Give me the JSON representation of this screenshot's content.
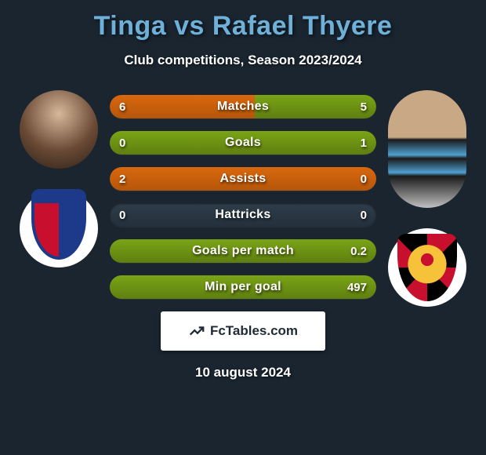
{
  "title": "Tinga vs Rafael Thyere",
  "subtitle": "Club competitions, Season 2023/2024",
  "date": "10 august 2024",
  "footer_brand": "FcTables.com",
  "colors": {
    "title": "#6fb0d8",
    "bar_bg": "#2a3744",
    "fill_left": "#d9680e",
    "fill_right": "#7aa416",
    "background": "#1a2530"
  },
  "bars": [
    {
      "label": "Matches",
      "left": "6",
      "right": "5",
      "left_pct": 54.5,
      "right_pct": 45.5
    },
    {
      "label": "Goals",
      "left": "0",
      "right": "1",
      "left_pct": 0,
      "right_pct": 100
    },
    {
      "label": "Assists",
      "left": "2",
      "right": "0",
      "left_pct": 100,
      "right_pct": 0
    },
    {
      "label": "Hattricks",
      "left": "0",
      "right": "0",
      "left_pct": 0,
      "right_pct": 0
    },
    {
      "label": "Goals per match",
      "left": "",
      "right": "0.2",
      "left_pct": 0,
      "right_pct": 100
    },
    {
      "label": "Min per goal",
      "left": "",
      "right": "497",
      "left_pct": 0,
      "right_pct": 100
    }
  ],
  "left_player": {
    "name": "Tinga",
    "club": "Fortaleza"
  },
  "right_player": {
    "name": "Rafael Thyere",
    "club": "Sport Recife"
  }
}
